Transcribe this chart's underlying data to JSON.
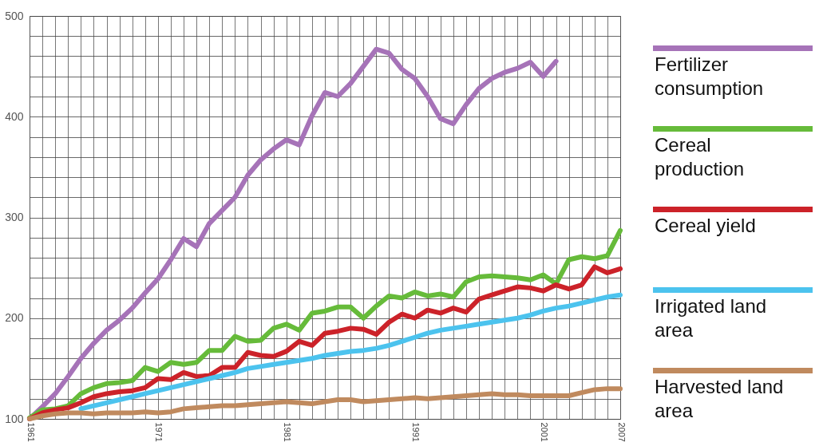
{
  "chart_data": {
    "type": "line",
    "x": [
      1961,
      1962,
      1963,
      1964,
      1965,
      1966,
      1967,
      1968,
      1969,
      1970,
      1971,
      1972,
      1973,
      1974,
      1975,
      1976,
      1977,
      1978,
      1979,
      1980,
      1981,
      1982,
      1983,
      1984,
      1985,
      1986,
      1987,
      1988,
      1989,
      1990,
      1991,
      1992,
      1993,
      1994,
      1995,
      1996,
      1997,
      1998,
      1999,
      2000,
      2001,
      2002,
      2003,
      2004,
      2005,
      2006,
      2007
    ],
    "series": [
      {
        "name": "Fertilizer consumption",
        "color": "#a673b8",
        "values": [
          100,
          112,
          125,
          142,
          160,
          175,
          188,
          198,
          210,
          225,
          239,
          258,
          279,
          271,
          294,
          307,
          320,
          342,
          357,
          368,
          377,
          372,
          401,
          424,
          420,
          433,
          450,
          467,
          463,
          447,
          438,
          420,
          398,
          393,
          412,
          428,
          438,
          444,
          448,
          454,
          440,
          455,
          null,
          null,
          null,
          null,
          null
        ]
      },
      {
        "name": "Cereal production",
        "color": "#66bb3a",
        "values": [
          101,
          109,
          110,
          113,
          125,
          131,
          135,
          136,
          138,
          151,
          147,
          156,
          154,
          156,
          168,
          168,
          182,
          177,
          178,
          190,
          194,
          188,
          205,
          207,
          211,
          211,
          200,
          212,
          222,
          220,
          226,
          222,
          224,
          221,
          236,
          241,
          242,
          241,
          240,
          238,
          243,
          234,
          258,
          261,
          259,
          262,
          287
        ]
      },
      {
        "name": "Cereal yield",
        "color": "#cc2229",
        "values": [
          100,
          106,
          109,
          111,
          116,
          122,
          125,
          127,
          128,
          131,
          140,
          139,
          146,
          142,
          143,
          151,
          151,
          166,
          163,
          162,
          167,
          177,
          173,
          185,
          187,
          190,
          189,
          184,
          196,
          204,
          200,
          208,
          205,
          210,
          206,
          219,
          223,
          227,
          231,
          230,
          227,
          233,
          229,
          233,
          251,
          245,
          249
        ]
      },
      {
        "name": "Irrigated land area",
        "color": "#4cc3ee",
        "values": [
          null,
          null,
          null,
          null,
          110,
          113,
          116,
          119,
          122,
          125,
          128,
          131,
          134,
          137,
          140,
          143,
          146,
          150,
          152,
          154,
          156,
          158,
          160,
          163,
          165,
          167,
          168,
          170,
          173,
          177,
          181,
          185,
          188,
          190,
          192,
          194,
          196,
          198,
          200,
          203,
          207,
          210,
          212,
          215,
          218,
          221,
          223
        ]
      },
      {
        "name": "Harvested land area",
        "color": "#c08a5e",
        "values": [
          100,
          103,
          105,
          106,
          106,
          105,
          106,
          106,
          106,
          107,
          106,
          107,
          110,
          111,
          112,
          113,
          113,
          114,
          115,
          116,
          117,
          116,
          115,
          117,
          119,
          119,
          117,
          118,
          119,
          120,
          121,
          120,
          121,
          122,
          123,
          124,
          125,
          124,
          124,
          123,
          123,
          123,
          123,
          126,
          129,
          130,
          130
        ]
      }
    ],
    "xlim": [
      1961,
      2007
    ],
    "xticks": [
      1961,
      {
        "value": 1962,
        "label": null
      },
      {
        "value": 1963,
        "label": null
      },
      {
        "value": 1964,
        "label": null
      },
      {
        "value": 1965,
        "label": null
      },
      {
        "value": 1966,
        "label": null
      },
      {
        "value": 1967,
        "label": null
      },
      {
        "value": 1968,
        "label": null
      },
      {
        "value": 1969,
        "label": null
      },
      {
        "value": 1970,
        "label": null
      },
      1971,
      {
        "value": 1972,
        "label": null
      },
      {
        "value": 1973,
        "label": null
      },
      {
        "value": 1974,
        "label": null
      },
      {
        "value": 1975,
        "label": null
      },
      {
        "value": 1976,
        "label": null
      },
      {
        "value": 1977,
        "label": null
      },
      {
        "value": 1978,
        "label": null
      },
      {
        "value": 1979,
        "label": null
      },
      {
        "value": 1980,
        "label": null
      },
      1981,
      {
        "value": 1982,
        "label": null
      },
      {
        "value": 1983,
        "label": null
      },
      {
        "value": 1984,
        "label": null
      },
      {
        "value": 1985,
        "label": null
      },
      {
        "value": 1986,
        "label": null
      },
      {
        "value": 1987,
        "label": null
      },
      {
        "value": 1988,
        "label": null
      },
      {
        "value": 1989,
        "label": null
      },
      {
        "value": 1990,
        "label": null
      },
      1991,
      {
        "value": 1992,
        "label": null
      },
      {
        "value": 1993,
        "label": null
      },
      {
        "value": 1994,
        "label": null
      },
      {
        "value": 1995,
        "label": null
      },
      {
        "value": 1996,
        "label": null
      },
      {
        "value": 1997,
        "label": null
      },
      {
        "value": 1998,
        "label": null
      },
      {
        "value": 1999,
        "label": null
      },
      {
        "value": 2000,
        "label": null
      },
      2001,
      {
        "value": 2002,
        "label": null
      },
      {
        "value": 2003,
        "label": null
      },
      {
        "value": 2004,
        "label": null
      },
      {
        "value": 2005,
        "label": null
      },
      {
        "value": 2006,
        "label": null
      },
      2007
    ],
    "ylim": [
      100,
      500
    ],
    "yticks": [
      100,
      {
        "value": 120,
        "label": null
      },
      {
        "value": 140,
        "label": null
      },
      {
        "value": 160,
        "label": null
      },
      {
        "value": 180,
        "label": null
      },
      200,
      {
        "value": 220,
        "label": null
      },
      {
        "value": 240,
        "label": null
      },
      {
        "value": 260,
        "label": null
      },
      {
        "value": 280,
        "label": null
      },
      300,
      {
        "value": 320,
        "label": null
      },
      {
        "value": 340,
        "label": null
      },
      {
        "value": 360,
        "label": null
      },
      {
        "value": 380,
        "label": null
      },
      400,
      {
        "value": 420,
        "label": null
      },
      {
        "value": 440,
        "label": null
      },
      {
        "value": 460,
        "label": null
      },
      {
        "value": 480,
        "label": null
      },
      500
    ],
    "grid": true,
    "legend": "right",
    "marker": "none",
    "line_style": "solid"
  }
}
